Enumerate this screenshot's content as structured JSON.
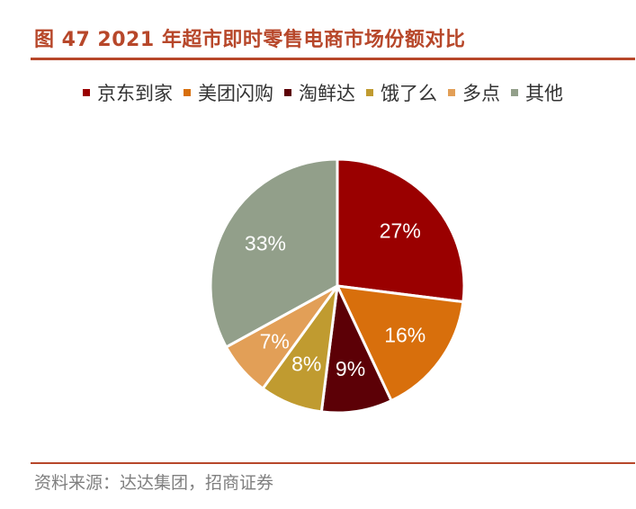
{
  "header": {
    "title": "图 47 2021 年超市即时零售电商市场份额对比"
  },
  "footer": {
    "source": "资料来源：达达集团，招商证券"
  },
  "chart_data": {
    "type": "pie",
    "title": "",
    "legend_placement": "top",
    "start_angle_deg": 0,
    "direction": "clockwise",
    "slices": [
      {
        "label": "京东到家",
        "value": 27,
        "display": "27%",
        "color": "#9a0000",
        "label_color": "#ffffff"
      },
      {
        "label": "美团闪购",
        "value": 16,
        "display": "16%",
        "color": "#d86f0c",
        "label_color": "#ffffff"
      },
      {
        "label": "淘鲜达",
        "value": 9,
        "display": "9%",
        "color": "#5c0006",
        "label_color": "#ffffff"
      },
      {
        "label": "饿了么",
        "value": 8,
        "display": "8%",
        "color": "#c09b30",
        "label_color": "#ffffff"
      },
      {
        "label": "多点",
        "value": 7,
        "display": "7%",
        "color": "#e29f57",
        "label_color": "#ffffff"
      },
      {
        "label": "其他",
        "value": 33,
        "display": "33%",
        "color": "#929f8a",
        "label_color": "#ffffff"
      }
    ]
  }
}
